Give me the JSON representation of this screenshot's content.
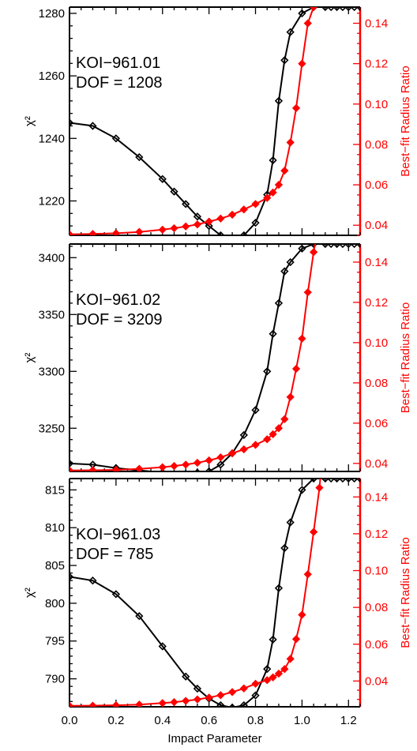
{
  "figure": {
    "xlabel": "Impact Parameter",
    "colors": {
      "left_axis": "#000000",
      "right_axis": "#ff0000",
      "chi2_series": "#000000",
      "ratio_series": "#ff0000"
    }
  },
  "chart_data": [
    {
      "type": "line",
      "label_lines": [
        "KOI−961.01",
        "DOF = 1208"
      ],
      "ylabel_left": "χ²",
      "ylabel_right": "Best−fit Radius Ratio",
      "xlim": [
        0.0,
        1.25
      ],
      "xticks": [
        0.0,
        0.2,
        0.4,
        0.6,
        0.8,
        1.0,
        1.2
      ],
      "xtick_labels": [
        "0.0",
        "0.2",
        "0.4",
        "0.6",
        "0.8",
        "1.0",
        "1.2"
      ],
      "ylim_left": [
        1209,
        1282
      ],
      "yticks_left": [
        1220,
        1240,
        1260,
        1280
      ],
      "ytick_labels_left": [
        "1220",
        "1240",
        "1260",
        "1280"
      ],
      "ylim_right": [
        0.035,
        0.148
      ],
      "yticks_right": [
        0.04,
        0.06,
        0.08,
        0.1,
        0.12,
        0.14
      ],
      "ytick_labels_right": [
        "0.04",
        "0.06",
        "0.08",
        "0.10",
        "0.12",
        "0.14"
      ],
      "series": [
        {
          "axis": "left",
          "color": "#000000",
          "x": [
            0.0,
            0.1,
            0.2,
            0.3,
            0.4,
            0.45,
            0.5,
            0.55,
            0.6,
            0.65,
            0.7,
            0.75,
            0.8,
            0.85,
            0.875,
            0.9,
            0.925,
            0.95,
            1.0,
            1.05,
            1.1,
            1.125,
            1.15,
            1.175,
            1.2,
            1.225,
            1.25
          ],
          "y": [
            1245,
            1244,
            1240,
            1234,
            1227,
            1223,
            1219,
            1215,
            1212,
            1209,
            1208,
            1209,
            1213,
            1222,
            1233,
            1252,
            1265,
            1274,
            1280,
            1282,
            1282,
            1282,
            1282,
            1282,
            1282,
            1282,
            1282
          ]
        },
        {
          "axis": "right",
          "color": "#ff0000",
          "x": [
            0.0,
            0.1,
            0.2,
            0.3,
            0.4,
            0.45,
            0.5,
            0.55,
            0.6,
            0.65,
            0.7,
            0.75,
            0.8,
            0.85,
            0.875,
            0.9,
            0.925,
            0.95,
            0.975,
            1.0,
            1.025,
            1.05,
            1.06
          ],
          "y": [
            0.0355,
            0.0357,
            0.036,
            0.0367,
            0.0378,
            0.0385,
            0.0394,
            0.0404,
            0.0418,
            0.0433,
            0.0452,
            0.0478,
            0.0505,
            0.0535,
            0.0562,
            0.06,
            0.067,
            0.081,
            0.098,
            0.12,
            0.14,
            0.148,
            0.151
          ]
        }
      ]
    },
    {
      "type": "line",
      "label_lines": [
        "KOI−961.02",
        "DOF = 3209"
      ],
      "ylabel_left": "χ²",
      "ylabel_right": "Best−fit Radius Ratio",
      "xlim": [
        0.0,
        1.25
      ],
      "xticks": [
        0.0,
        0.2,
        0.4,
        0.6,
        0.8,
        1.0,
        1.2
      ],
      "xtick_labels": [
        "0.0",
        "0.2",
        "0.4",
        "0.6",
        "0.8",
        "1.0",
        "1.2"
      ],
      "ylim_left": [
        3212,
        3412
      ],
      "yticks_left": [
        3250,
        3300,
        3350,
        3400
      ],
      "ytick_labels_left": [
        "3250",
        "3300",
        "3350",
        "3400"
      ],
      "ylim_right": [
        0.036,
        0.149
      ],
      "yticks_right": [
        0.04,
        0.06,
        0.08,
        0.1,
        0.12,
        0.14
      ],
      "ytick_labels_right": [
        "0.04",
        "0.06",
        "0.08",
        "0.10",
        "0.12",
        "0.14"
      ],
      "series": [
        {
          "axis": "left",
          "color": "#000000",
          "x": [
            0.0,
            0.1,
            0.2,
            0.3,
            0.4,
            0.5,
            0.55,
            0.6,
            0.65,
            0.7,
            0.75,
            0.8,
            0.85,
            0.875,
            0.9,
            0.925,
            0.95,
            1.0,
            1.05,
            1.1,
            1.125,
            1.15,
            1.175,
            1.2,
            1.225,
            1.25
          ],
          "y": [
            3219,
            3218,
            3215,
            3213,
            3211,
            3210,
            3211,
            3212,
            3218,
            3228,
            3244,
            3266,
            3300,
            3333,
            3360,
            3388,
            3396,
            3408,
            3412,
            3412,
            3412,
            3412,
            3412,
            3412,
            3412,
            3412
          ]
        },
        {
          "axis": "right",
          "color": "#ff0000",
          "x": [
            0.0,
            0.1,
            0.2,
            0.3,
            0.4,
            0.45,
            0.5,
            0.55,
            0.6,
            0.65,
            0.7,
            0.75,
            0.8,
            0.85,
            0.875,
            0.9,
            0.925,
            0.95,
            0.975,
            1.0,
            1.025,
            1.05,
            1.06
          ],
          "y": [
            0.0365,
            0.0366,
            0.0368,
            0.0373,
            0.0381,
            0.0387,
            0.0394,
            0.0403,
            0.0415,
            0.043,
            0.045,
            0.047,
            0.0492,
            0.052,
            0.0545,
            0.0575,
            0.062,
            0.073,
            0.087,
            0.102,
            0.125,
            0.145,
            0.151
          ]
        }
      ]
    },
    {
      "type": "line",
      "label_lines": [
        "KOI−961.03",
        "DOF = 785"
      ],
      "ylabel_left": "χ²",
      "ylabel_right": "Best−fit Radius Ratio",
      "xlim": [
        0.0,
        1.25
      ],
      "xticks": [
        0.0,
        0.2,
        0.4,
        0.6,
        0.8,
        1.0,
        1.2
      ],
      "xtick_labels": [
        "0.0",
        "0.2",
        "0.4",
        "0.6",
        "0.8",
        "1.0",
        "1.2"
      ],
      "ylim_left": [
        786.3,
        816.5
      ],
      "yticks_left": [
        790,
        795,
        800,
        805,
        810,
        815
      ],
      "ytick_labels_left": [
        "790",
        "795",
        "800",
        "805",
        "810",
        "815"
      ],
      "ylim_right": [
        0.026,
        0.15
      ],
      "yticks_right": [
        0.04,
        0.06,
        0.08,
        0.1,
        0.12,
        0.14
      ],
      "ytick_labels_right": [
        "0.04",
        "0.06",
        "0.08",
        "0.10",
        "0.12",
        "0.14"
      ],
      "series": [
        {
          "axis": "left",
          "color": "#000000",
          "x": [
            0.0,
            0.1,
            0.2,
            0.3,
            0.4,
            0.5,
            0.55,
            0.6,
            0.65,
            0.7,
            0.75,
            0.8,
            0.85,
            0.875,
            0.9,
            0.925,
            0.95,
            1.0,
            1.05,
            1.1,
            1.125,
            1.15,
            1.175,
            1.2,
            1.225,
            1.25
          ],
          "y": [
            803.5,
            803.0,
            801.2,
            798.3,
            794.3,
            790.3,
            788.7,
            787.4,
            786.5,
            786.2,
            786.5,
            787.8,
            791.3,
            795.2,
            802.0,
            807.3,
            810.7,
            815.0,
            816.5,
            816.5,
            816.5,
            816.5,
            816.5,
            816.5,
            816.5,
            816.5
          ]
        },
        {
          "axis": "right",
          "color": "#ff0000",
          "x": [
            0.0,
            0.1,
            0.2,
            0.3,
            0.4,
            0.45,
            0.5,
            0.55,
            0.6,
            0.65,
            0.7,
            0.75,
            0.8,
            0.85,
            0.875,
            0.9,
            0.925,
            0.95,
            0.975,
            1.0,
            1.025,
            1.05,
            1.075,
            1.08
          ],
          "y": [
            0.0265,
            0.0266,
            0.0268,
            0.0272,
            0.028,
            0.0285,
            0.0292,
            0.03,
            0.031,
            0.0323,
            0.034,
            0.036,
            0.0385,
            0.0405,
            0.042,
            0.044,
            0.0465,
            0.052,
            0.0628,
            0.076,
            0.098,
            0.121,
            0.145,
            0.152
          ]
        }
      ]
    }
  ]
}
